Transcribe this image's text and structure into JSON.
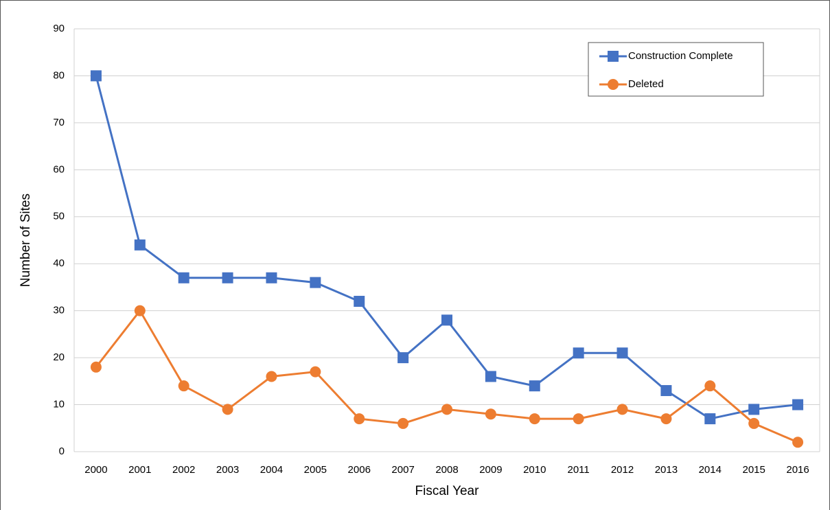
{
  "chart_data": {
    "type": "line",
    "x_label": "Fiscal Year",
    "y_label": "Number of Sites",
    "categories": [
      "2000",
      "2001",
      "2002",
      "2003",
      "2004",
      "2005",
      "2006",
      "2007",
      "2008",
      "2009",
      "2010",
      "2011",
      "2012",
      "2013",
      "2014",
      "2015",
      "2016"
    ],
    "series": [
      {
        "name": "Construction Complete",
        "color": "#4472c4",
        "marker": "square",
        "values": [
          80,
          44,
          37,
          37,
          37,
          36,
          32,
          20,
          28,
          16,
          14,
          21,
          21,
          13,
          7,
          9,
          10
        ]
      },
      {
        "name": "Deleted",
        "color": "#ed7d31",
        "marker": "circle",
        "values": [
          18,
          30,
          14,
          9,
          16,
          17,
          7,
          6,
          9,
          8,
          7,
          7,
          9,
          7,
          14,
          6,
          2
        ]
      }
    ],
    "ylim": [
      0,
      90
    ],
    "yticks": [
      0,
      10,
      20,
      30,
      40,
      50,
      60,
      70,
      80,
      90
    ],
    "grid": true,
    "legend": "upper right"
  }
}
